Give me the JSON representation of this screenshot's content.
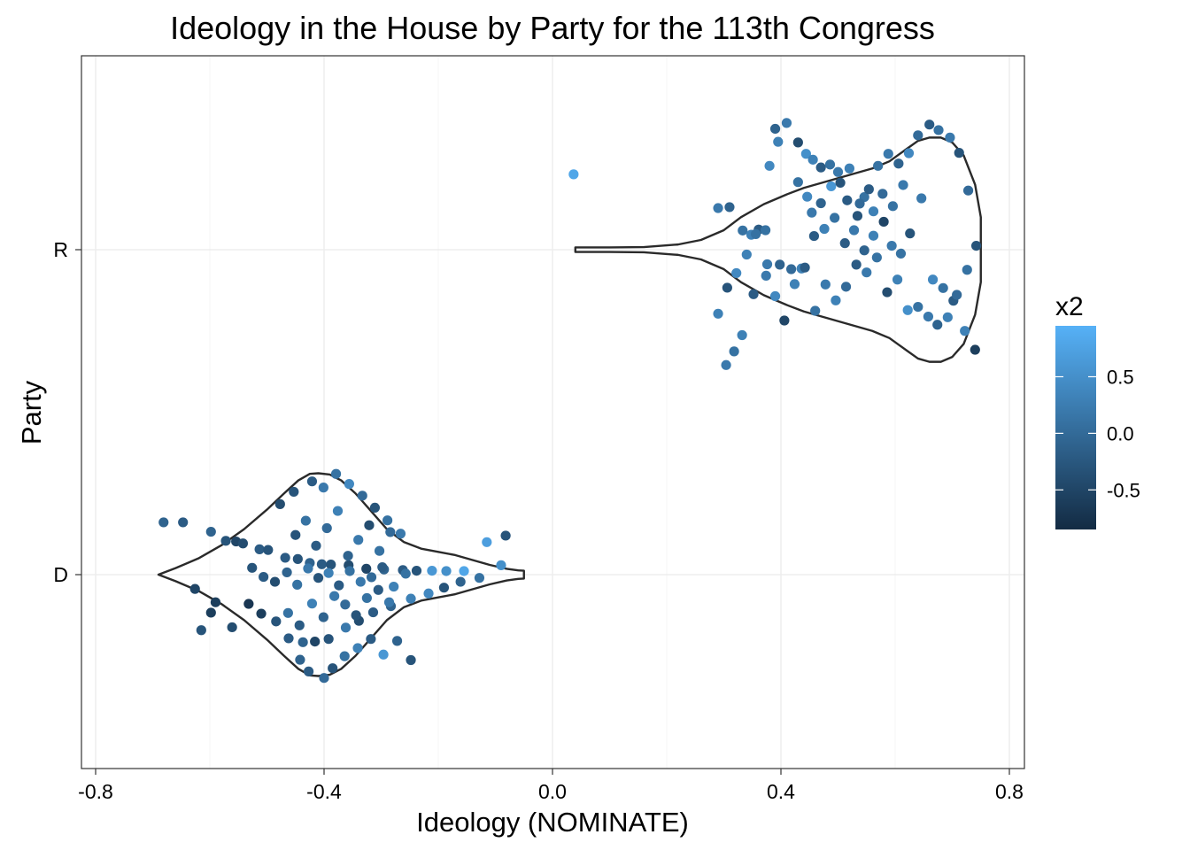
{
  "chart_data": {
    "type": "scatter",
    "title": "Ideology in the House by Party for the 113th Congress",
    "xlabel": "Ideology (NOMINATE)",
    "ylabel": "Party",
    "categories": [
      "D",
      "R"
    ],
    "xlim": [
      -0.8,
      0.8
    ],
    "x_ticks": [
      "-0.8",
      "-0.4",
      "0.0",
      "0.4",
      "0.8"
    ],
    "grid": true,
    "overlay": "violin",
    "legend": {
      "title": "x2",
      "placement": "right",
      "ticks": [
        "0.5",
        "0.0",
        "-0.5"
      ],
      "color_low": "#132B43",
      "color_high": "#56B1F7",
      "range": [
        -0.85,
        0.95
      ]
    },
    "series": [
      {
        "category": "D",
        "violin": [
          [
            -0.69,
            0.0
          ],
          [
            -0.66,
            0.02
          ],
          [
            -0.62,
            0.05
          ],
          [
            -0.58,
            0.09
          ],
          [
            -0.54,
            0.14
          ],
          [
            -0.5,
            0.2
          ],
          [
            -0.47,
            0.25
          ],
          [
            -0.445,
            0.29
          ],
          [
            -0.425,
            0.31
          ],
          [
            -0.41,
            0.312
          ],
          [
            -0.39,
            0.308
          ],
          [
            -0.37,
            0.29
          ],
          [
            -0.345,
            0.25
          ],
          [
            -0.32,
            0.2
          ],
          [
            -0.29,
            0.14
          ],
          [
            -0.26,
            0.1
          ],
          [
            -0.23,
            0.08
          ],
          [
            -0.2,
            0.07
          ],
          [
            -0.17,
            0.06
          ],
          [
            -0.14,
            0.045
          ],
          [
            -0.11,
            0.03
          ],
          [
            -0.08,
            0.018
          ],
          [
            -0.06,
            0.013
          ],
          [
            -0.05,
            0.012
          ]
        ],
        "points": [
          [
            -0.681,
            0.161,
            -0.1
          ],
          [
            -0.647,
            0.161,
            -0.2
          ],
          [
            -0.615,
            -0.171,
            -0.3
          ],
          [
            -0.598,
            0.132,
            -0.1
          ],
          [
            -0.598,
            -0.117,
            -0.6
          ],
          [
            -0.572,
            0.104,
            -0.3
          ],
          [
            -0.554,
            0.102,
            -0.5
          ],
          [
            -0.542,
            0.096,
            -0.4
          ],
          [
            -0.513,
            0.078,
            -0.2
          ],
          [
            -0.498,
            0.076,
            -0.3
          ],
          [
            -0.468,
            0.052,
            -0.2
          ],
          [
            -0.446,
            0.048,
            -0.3
          ],
          [
            -0.425,
            0.036,
            -0.1
          ],
          [
            -0.404,
            0.032,
            -0.2
          ],
          [
            -0.388,
            0.031,
            -0.3
          ],
          [
            -0.357,
            0.029,
            -0.4
          ],
          [
            -0.326,
            0.018,
            -0.5
          ],
          [
            -0.295,
            0.016,
            -0.1
          ],
          [
            -0.262,
            0.014,
            -0.2
          ],
          [
            -0.238,
            0.012,
            -0.3
          ],
          [
            -0.211,
            0.012,
            0.6
          ],
          [
            -0.186,
            0.011,
            0.5
          ],
          [
            -0.155,
            0.011,
            0.8
          ],
          [
            -0.115,
            0.1,
            0.7
          ],
          [
            -0.082,
            0.12,
            -0.3
          ],
          [
            -0.626,
            -0.044,
            -0.5
          ],
          [
            -0.59,
            -0.085,
            -0.6
          ],
          [
            -0.561,
            -0.162,
            -0.4
          ],
          [
            -0.532,
            -0.09,
            -0.7
          ],
          [
            -0.51,
            -0.12,
            -0.6
          ],
          [
            -0.484,
            -0.144,
            -0.3
          ],
          [
            -0.462,
            -0.196,
            -0.2
          ],
          [
            -0.437,
            -0.208,
            -0.1
          ],
          [
            -0.416,
            -0.206,
            -0.5
          ],
          [
            -0.392,
            -0.198,
            -0.3
          ],
          [
            -0.362,
            -0.163,
            0.2
          ],
          [
            -0.339,
            -0.142,
            -0.4
          ],
          [
            -0.314,
            -0.116,
            -0.2
          ],
          [
            -0.283,
            -0.097,
            -0.1
          ],
          [
            -0.248,
            -0.074,
            0.3
          ],
          [
            -0.217,
            -0.058,
            0.4
          ],
          [
            -0.19,
            -0.04,
            -0.3
          ],
          [
            -0.161,
            -0.022,
            -0.1
          ],
          [
            -0.128,
            -0.01,
            0.1
          ],
          [
            -0.09,
            0.029,
            0.5
          ],
          [
            -0.526,
            0.021,
            -0.3
          ],
          [
            -0.506,
            -0.007,
            -0.2
          ],
          [
            -0.486,
            -0.022,
            -0.4
          ],
          [
            -0.465,
            0.007,
            -0.1
          ],
          [
            -0.447,
            -0.031,
            0.1
          ],
          [
            -0.428,
            0.019,
            0.2
          ],
          [
            -0.41,
            -0.01,
            -0.3
          ],
          [
            -0.392,
            0.005,
            0.3
          ],
          [
            -0.374,
            -0.033,
            -0.2
          ],
          [
            -0.355,
            0.011,
            0.1
          ],
          [
            -0.336,
            -0.022,
            0.2
          ],
          [
            -0.317,
            -0.008,
            0.0
          ],
          [
            -0.298,
            0.023,
            -0.2
          ],
          [
            -0.278,
            -0.037,
            0.3
          ],
          [
            -0.257,
            0.003,
            0.1
          ],
          [
            -0.477,
            0.217,
            -0.4
          ],
          [
            -0.453,
            0.255,
            -0.3
          ],
          [
            -0.421,
            0.287,
            -0.2
          ],
          [
            -0.401,
            0.268,
            0.2
          ],
          [
            -0.379,
            0.31,
            0.1
          ],
          [
            -0.356,
            0.279,
            0.4
          ],
          [
            -0.333,
            0.243,
            0.0
          ],
          [
            -0.311,
            0.206,
            -0.3
          ],
          [
            -0.289,
            0.167,
            0.1
          ],
          [
            -0.266,
            0.126,
            0.2
          ],
          [
            -0.442,
            -0.262,
            -0.1
          ],
          [
            -0.427,
            -0.298,
            -0.2
          ],
          [
            -0.4,
            -0.318,
            0.0
          ],
          [
            -0.385,
            -0.288,
            -0.3
          ],
          [
            -0.364,
            -0.251,
            0.1
          ],
          [
            -0.341,
            -0.226,
            0.3
          ],
          [
            -0.318,
            -0.198,
            -0.2
          ],
          [
            -0.296,
            -0.246,
            0.6
          ],
          [
            -0.272,
            -0.204,
            -0.1
          ],
          [
            -0.248,
            -0.263,
            -0.3
          ],
          [
            -0.463,
            -0.118,
            0.1
          ],
          [
            -0.443,
            -0.156,
            -0.2
          ],
          [
            -0.421,
            -0.089,
            0.3
          ],
          [
            -0.401,
            -0.131,
            -0.1
          ],
          [
            -0.382,
            -0.066,
            0.2
          ],
          [
            -0.363,
            -0.092,
            0.0
          ],
          [
            -0.344,
            -0.125,
            -0.3
          ],
          [
            -0.325,
            -0.072,
            0.1
          ],
          [
            -0.305,
            -0.047,
            -0.2
          ],
          [
            -0.286,
            -0.085,
            0.2
          ],
          [
            -0.45,
            0.122,
            -0.3
          ],
          [
            -0.432,
            0.166,
            0.1
          ],
          [
            -0.414,
            0.089,
            -0.2
          ],
          [
            -0.395,
            0.143,
            0.0
          ],
          [
            -0.376,
            0.196,
            0.3
          ],
          [
            -0.358,
            0.058,
            -0.1
          ],
          [
            -0.34,
            0.107,
            0.2
          ],
          [
            -0.321,
            0.152,
            -0.4
          ],
          [
            -0.303,
            0.073,
            0.1
          ],
          [
            -0.284,
            0.131,
            0.0
          ]
        ]
      },
      {
        "category": "R",
        "violin": [
          [
            0.04,
            0.007
          ],
          [
            0.1,
            0.007
          ],
          [
            0.16,
            0.008
          ],
          [
            0.22,
            0.016
          ],
          [
            0.26,
            0.03
          ],
          [
            0.3,
            0.06
          ],
          [
            0.33,
            0.1
          ],
          [
            0.37,
            0.14
          ],
          [
            0.41,
            0.17
          ],
          [
            0.44,
            0.19
          ],
          [
            0.47,
            0.205
          ],
          [
            0.5,
            0.22
          ],
          [
            0.53,
            0.235
          ],
          [
            0.56,
            0.25
          ],
          [
            0.59,
            0.272
          ],
          [
            0.62,
            0.31
          ],
          [
            0.64,
            0.335
          ],
          [
            0.66,
            0.345
          ],
          [
            0.68,
            0.345
          ],
          [
            0.7,
            0.33
          ],
          [
            0.72,
            0.29
          ],
          [
            0.74,
            0.2
          ],
          [
            0.75,
            0.1
          ]
        ],
        "points": [
          [
            0.037,
            0.232,
            0.8
          ],
          [
            0.29,
            0.128,
            0.2
          ],
          [
            0.31,
            0.131,
            -0.1
          ],
          [
            0.333,
            0.059,
            0.1
          ],
          [
            0.348,
            0.046,
            0.3
          ],
          [
            0.361,
            0.062,
            -0.2
          ],
          [
            0.373,
            0.06,
            0.1
          ],
          [
            0.38,
            0.258,
            0.4
          ],
          [
            0.39,
            0.372,
            -0.1
          ],
          [
            0.395,
            0.332,
            0.3
          ],
          [
            0.41,
            0.39,
            0.2
          ],
          [
            0.43,
            0.33,
            -0.4
          ],
          [
            0.444,
            0.295,
            0.5
          ],
          [
            0.456,
            0.277,
            0.3
          ],
          [
            0.47,
            0.253,
            -0.2
          ],
          [
            0.488,
            0.195,
            0.6
          ],
          [
            0.5,
            0.239,
            0.2
          ],
          [
            0.516,
            0.152,
            -0.2
          ],
          [
            0.534,
            0.104,
            -0.3
          ],
          [
            0.546,
            0.162,
            0.1
          ],
          [
            0.562,
            0.118,
            0.3
          ],
          [
            0.58,
            0.086,
            -0.5
          ],
          [
            0.594,
            0.012,
            0.2
          ],
          [
            0.61,
            -0.012,
            0.1
          ],
          [
            0.626,
            0.05,
            -0.3
          ],
          [
            0.646,
            0.158,
            0.2
          ],
          [
            0.666,
            -0.092,
            0.4
          ],
          [
            0.684,
            -0.118,
            0.1
          ],
          [
            0.702,
            -0.157,
            -0.2
          ],
          [
            0.722,
            -0.25,
            0.3
          ],
          [
            0.74,
            -0.308,
            -0.6
          ],
          [
            0.728,
            0.182,
            0.0
          ],
          [
            0.712,
            0.298,
            -0.3
          ],
          [
            0.696,
            0.345,
            0.2
          ],
          [
            0.676,
            0.368,
            0.1
          ],
          [
            0.66,
            0.385,
            -0.2
          ],
          [
            0.64,
            0.352,
            0.0
          ],
          [
            0.624,
            0.297,
            0.4
          ],
          [
            0.606,
            0.265,
            -0.1
          ],
          [
            0.588,
            0.295,
            0.2
          ],
          [
            0.57,
            0.258,
            0.1
          ],
          [
            0.554,
            0.186,
            -0.2
          ],
          [
            0.538,
            0.142,
            0.0
          ],
          [
            0.52,
            0.25,
            0.3
          ],
          [
            0.504,
            0.206,
            -0.3
          ],
          [
            0.486,
            0.262,
            0.1
          ],
          [
            0.47,
            0.143,
            -0.1
          ],
          [
            0.454,
            0.114,
            0.2
          ],
          [
            0.436,
            -0.058,
            0.3
          ],
          [
            0.418,
            -0.06,
            0.0
          ],
          [
            0.398,
            -0.046,
            -0.1
          ],
          [
            0.376,
            -0.045,
            0.2
          ],
          [
            0.352,
            -0.137,
            -0.2
          ],
          [
            0.332,
            -0.263,
            0.3
          ],
          [
            0.318,
            -0.313,
            0.1
          ],
          [
            0.304,
            -0.355,
            0.2
          ],
          [
            0.29,
            -0.197,
            0.3
          ],
          [
            0.306,
            -0.117,
            -0.3
          ],
          [
            0.322,
            -0.072,
            0.4
          ],
          [
            0.34,
            -0.015,
            0.3
          ],
          [
            0.356,
            0.048,
            0.1
          ],
          [
            0.374,
            -0.08,
            0.2
          ],
          [
            0.39,
            -0.143,
            0.4
          ],
          [
            0.406,
            -0.218,
            -0.5
          ],
          [
            0.424,
            -0.106,
            0.3
          ],
          [
            0.442,
            -0.055,
            -0.2
          ],
          [
            0.46,
            -0.188,
            0.1
          ],
          [
            0.478,
            -0.107,
            0.2
          ],
          [
            0.496,
            -0.156,
            0.3
          ],
          [
            0.514,
            -0.114,
            0.0
          ],
          [
            0.532,
            -0.046,
            -0.2
          ],
          [
            0.55,
            -0.07,
            0.2
          ],
          [
            0.568,
            -0.024,
            0.1
          ],
          [
            0.586,
            -0.131,
            -0.4
          ],
          [
            0.604,
            -0.092,
            0.3
          ],
          [
            0.622,
            -0.186,
            0.5
          ],
          [
            0.64,
            -0.176,
            0.1
          ],
          [
            0.658,
            -0.206,
            0.2
          ],
          [
            0.674,
            -0.231,
            -0.1
          ],
          [
            0.692,
            -0.208,
            0.3
          ],
          [
            0.708,
            -0.139,
            0.0
          ],
          [
            0.726,
            -0.062,
            0.1
          ],
          [
            0.742,
            0.012,
            -0.3
          ],
          [
            0.614,
            0.199,
            0.2
          ],
          [
            0.596,
            0.134,
            0.1
          ],
          [
            0.578,
            0.172,
            0.0
          ],
          [
            0.562,
            0.043,
            0.3
          ],
          [
            0.546,
            -0.002,
            -0.1
          ],
          [
            0.528,
            0.06,
            0.2
          ],
          [
            0.512,
            0.02,
            -0.2
          ],
          [
            0.494,
            0.098,
            0.1
          ],
          [
            0.476,
            0.064,
            0.3
          ],
          [
            0.458,
            0.042,
            -0.2
          ],
          [
            0.446,
            0.163,
            0.4
          ],
          [
            0.43,
            0.208,
            0.1
          ]
        ]
      }
    ]
  }
}
